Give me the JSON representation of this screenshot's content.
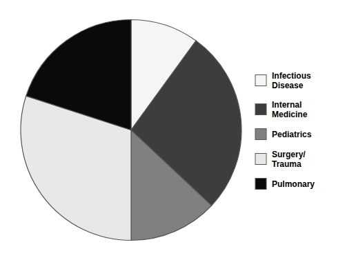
{
  "chart_data": {
    "type": "pie",
    "categories": [
      "Infectious\nDisease",
      "Internal\nMedicine",
      "Pediatrics",
      "Surgery/\nTrauma",
      "Pulmonary"
    ],
    "values": [
      10,
      27,
      13,
      30,
      20
    ],
    "colors": [
      "#f5f5f5",
      "#3d3d3d",
      "#808080",
      "#e8e8e8",
      "#0a0a0a"
    ],
    "legend": "right"
  }
}
